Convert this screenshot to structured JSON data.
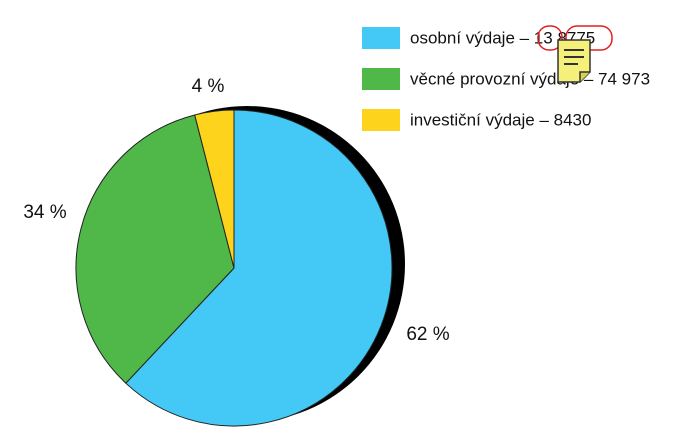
{
  "chart_data": {
    "type": "pie",
    "categories": [
      "osobní výdaje – 13 8775",
      "věcné provozní výdaje – 74 973",
      "investiční výdaje – 8430"
    ],
    "values": [
      62,
      34,
      4
    ],
    "value_labels": [
      "62 %",
      "34 %",
      "4 %"
    ],
    "colors": [
      "#44c8f5",
      "#50b848",
      "#fdd31c"
    ],
    "legend": "top-right"
  }
}
